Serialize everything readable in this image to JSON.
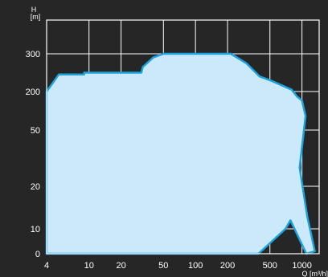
{
  "chart_data": {
    "type": "area",
    "title": "",
    "ylabel": "H",
    "yunit": "[m]",
    "xlabel": "Q [m³/h]",
    "x_tick_labels": [
      "4",
      "10",
      "20",
      "50",
      "100",
      "200",
      "500",
      "1000"
    ],
    "y_tick_labels": [
      "0",
      "10",
      "20",
      "50",
      "200",
      "300"
    ],
    "grid": true,
    "colors": {
      "background": "#262626",
      "fill": "#cce9fb",
      "outline": "#1aa3de",
      "grid": "#ffffff"
    },
    "series": [
      {
        "values_description_only": false,
        "outline_H_by_Q": [
          {
            "x": 4,
            "y": 200
          },
          {
            "x": 5.2,
            "y": 245
          },
          {
            "x": 9,
            "y": 245
          },
          {
            "x": 9,
            "y": 250
          },
          {
            "x": 31,
            "y": 250
          },
          {
            "x": 32,
            "y": 265
          },
          {
            "x": 40,
            "y": 290
          },
          {
            "x": 50,
            "y": 300
          },
          {
            "x": 215,
            "y": 300
          },
          {
            "x": 300,
            "y": 275
          },
          {
            "x": 400,
            "y": 240
          },
          {
            "x": 500,
            "y": 230
          },
          {
            "x": 800,
            "y": 205
          },
          {
            "x": 900,
            "y": 180
          },
          {
            "x": 1000,
            "y": 165
          },
          {
            "x": 1080,
            "y": 105
          },
          {
            "x": 950,
            "y": 30
          },
          {
            "x": 1120,
            "y": 13
          },
          {
            "x": 1320,
            "y": 1
          },
          {
            "x": 1100,
            "y": 0
          },
          {
            "x": 780,
            "y": 12
          },
          {
            "x": 700,
            "y": 10
          },
          {
            "x": 390,
            "y": 0
          },
          {
            "x": 4,
            "y": 0
          }
        ]
      }
    ]
  }
}
